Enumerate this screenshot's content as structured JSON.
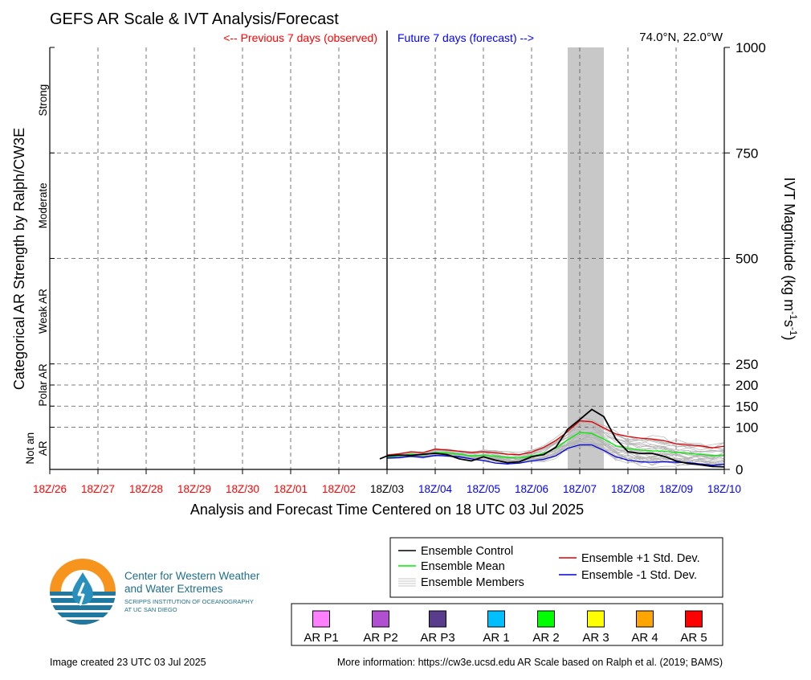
{
  "title": "GEFS AR Scale & IVT Analysis/Forecast",
  "previous_label": "<-- Previous 7 days (observed)",
  "future_label": "Future 7 days (forecast) -->",
  "location": "74.0°N, 22.0°W",
  "xlabel": "Analysis and Forecast Time Centered on 18 UTC 03 Jul 2025",
  "ylabel_left": "Categorical AR Strength by Ralph/CW3E",
  "ylabel_right": {
    "base": "IVT Magnitude (kg m",
    "sup1": "-1",
    "mid": "s",
    "sup2": "-1",
    "end": ")"
  },
  "categories": [
    {
      "label": "Strong",
      "lines": [
        "Strong"
      ]
    },
    {
      "label": "Moderate",
      "lines": [
        "Moderate"
      ]
    },
    {
      "label": "Weak AR",
      "lines": [
        "Weak AR"
      ]
    },
    {
      "label": "Polar AR",
      "lines": [
        "Polar AR"
      ]
    },
    {
      "label": "Not an AR",
      "lines": [
        "Not an",
        "AR"
      ]
    }
  ],
  "colors": {
    "observed": "#ff0000",
    "forecast": "#0000ff",
    "control": "#000000",
    "mean": "#00ee00",
    "plus_std": "#dd0000",
    "minus_std": "#0000dd",
    "members": "#b4b4b4",
    "shade": "#c8c8c8"
  },
  "legend": {
    "control": "Ensemble Control",
    "mean": "Ensemble Mean",
    "members": "Ensemble Members",
    "plus_std": "Ensemble +1 Std. Dev.",
    "minus_std": "Ensemble -1 Std. Dev."
  },
  "ar_scale": [
    {
      "label": "AR P1",
      "color": "#ff80ff"
    },
    {
      "label": "AR P2",
      "color": "#b050d0"
    },
    {
      "label": "AR P3",
      "color": "#5a3c8c"
    },
    {
      "label": "AR 1",
      "color": "#00bfff"
    },
    {
      "label": "AR 2",
      "color": "#00ff00"
    },
    {
      "label": "AR 3",
      "color": "#ffff00"
    },
    {
      "label": "AR 4",
      "color": "#ffa500"
    },
    {
      "label": "AR 5",
      "color": "#ff0000"
    }
  ],
  "logo": {
    "line1": "Center for Western Weather",
    "line2": "and Water Extremes",
    "line3": "SCRIPPS INSTITUTION OF OCEANOGRAPHY",
    "line4": "AT UC SAN DIEGO"
  },
  "footer_left": "Image created 23 UTC 03 Jul 2025",
  "footer_right": "More information: https://cw3e.ucsd.edu AR Scale based on Ralph et al. (2019; BAMS)",
  "chart_data": {
    "type": "line",
    "title": "GEFS AR Scale & IVT Analysis/Forecast",
    "xlabel": "Analysis and Forecast Time Centered on 18 UTC 03 Jul 2025",
    "ylabel": "IVT Magnitude (kg m-1s-1)",
    "ylim": [
      0,
      1000
    ],
    "y_ticks": [
      0,
      100,
      150,
      200,
      250,
      500,
      750,
      1000
    ],
    "y_tick_labels": [
      "0",
      "100",
      "150",
      "200",
      "250",
      "500",
      "750",
      "1000"
    ],
    "x_ticks": [
      {
        "label": "18Z/26",
        "day": -7,
        "color": "observed"
      },
      {
        "label": "18Z/27",
        "day": -6,
        "color": "observed"
      },
      {
        "label": "18Z/28",
        "day": -5,
        "color": "observed"
      },
      {
        "label": "18Z/29",
        "day": -4,
        "color": "observed"
      },
      {
        "label": "18Z/30",
        "day": -3,
        "color": "observed"
      },
      {
        "label": "18Z/01",
        "day": -2,
        "color": "observed"
      },
      {
        "label": "18Z/02",
        "day": -1,
        "color": "observed"
      },
      {
        "label": "18Z/03",
        "day": 0,
        "color": "control"
      },
      {
        "label": "18Z/04",
        "day": 1,
        "color": "forecast"
      },
      {
        "label": "18Z/05",
        "day": 2,
        "color": "forecast"
      },
      {
        "label": "18Z/06",
        "day": 3,
        "color": "forecast"
      },
      {
        "label": "18Z/07",
        "day": 4,
        "color": "forecast"
      },
      {
        "label": "18Z/08",
        "day": 5,
        "color": "forecast"
      },
      {
        "label": "18Z/09",
        "day": 6,
        "color": "forecast"
      },
      {
        "label": "18Z/10",
        "day": 7,
        "color": "forecast"
      }
    ],
    "xlim": [
      -7,
      7
    ],
    "shaded_period": [
      3.75,
      4.5
    ],
    "grid": true,
    "series": [
      {
        "name": "Ensemble Control",
        "color_key": "control",
        "x": [
          -0.15,
          0,
          0.25,
          0.5,
          0.75,
          1,
          1.25,
          1.5,
          1.75,
          2,
          2.25,
          2.5,
          2.75,
          3,
          3.25,
          3.5,
          3.75,
          4,
          4.25,
          4.5,
          4.75,
          5,
          5.25,
          5.5,
          5.75,
          6,
          6.25,
          6.5,
          6.75,
          7
        ],
        "y": [
          25,
          32,
          34,
          33,
          36,
          38,
          35,
          25,
          20,
          30,
          22,
          16,
          18,
          30,
          35,
          52,
          95,
          118,
          142,
          125,
          72,
          42,
          38,
          38,
          31,
          20,
          14,
          11,
          7,
          6
        ]
      },
      {
        "name": "Ensemble Mean",
        "color_key": "mean",
        "x": [
          0,
          0.25,
          0.5,
          0.75,
          1,
          1.25,
          1.5,
          1.75,
          2,
          2.25,
          2.5,
          2.75,
          3,
          3.25,
          3.5,
          3.75,
          4,
          4.25,
          4.5,
          4.75,
          5,
          5.25,
          5.5,
          5.75,
          6,
          6.25,
          6.5,
          6.75,
          7
        ],
        "y": [
          30,
          32,
          36,
          34,
          40,
          39,
          36,
          32,
          34,
          31,
          28,
          27,
          32,
          38,
          50,
          70,
          88,
          85,
          72,
          56,
          50,
          46,
          44,
          43,
          40,
          38,
          36,
          33,
          34
        ]
      },
      {
        "name": "Ensemble +1 Std. Dev.",
        "color_key": "plus_std",
        "x": [
          0,
          0.25,
          0.5,
          0.75,
          1,
          1.25,
          1.5,
          1.75,
          2,
          2.25,
          2.5,
          2.75,
          3,
          3.25,
          3.5,
          3.75,
          4,
          4.25,
          4.5,
          4.75,
          5,
          5.25,
          5.5,
          5.75,
          6,
          6.25,
          6.5,
          6.75,
          7
        ],
        "y": [
          34,
          37,
          42,
          40,
          48,
          46,
          43,
          40,
          42,
          39,
          36,
          35,
          41,
          52,
          68,
          90,
          115,
          113,
          98,
          84,
          78,
          74,
          72,
          68,
          61,
          58,
          56,
          51,
          55
        ]
      },
      {
        "name": "Ensemble -1 Std. Dev.",
        "color_key": "minus_std",
        "x": [
          0,
          0.25,
          0.5,
          0.75,
          1,
          1.25,
          1.5,
          1.75,
          2,
          2.25,
          2.5,
          2.75,
          3,
          3.25,
          3.5,
          3.75,
          4,
          4.25,
          4.5,
          4.75,
          5,
          5.25,
          5.5,
          5.75,
          6,
          6.25,
          6.5,
          6.75,
          7
        ],
        "y": [
          27,
          28,
          31,
          29,
          33,
          32,
          30,
          25,
          21,
          15,
          13,
          15,
          20,
          24,
          32,
          50,
          58,
          58,
          45,
          30,
          22,
          18,
          17,
          18,
          17,
          16,
          13,
          10,
          12
        ]
      }
    ]
  }
}
